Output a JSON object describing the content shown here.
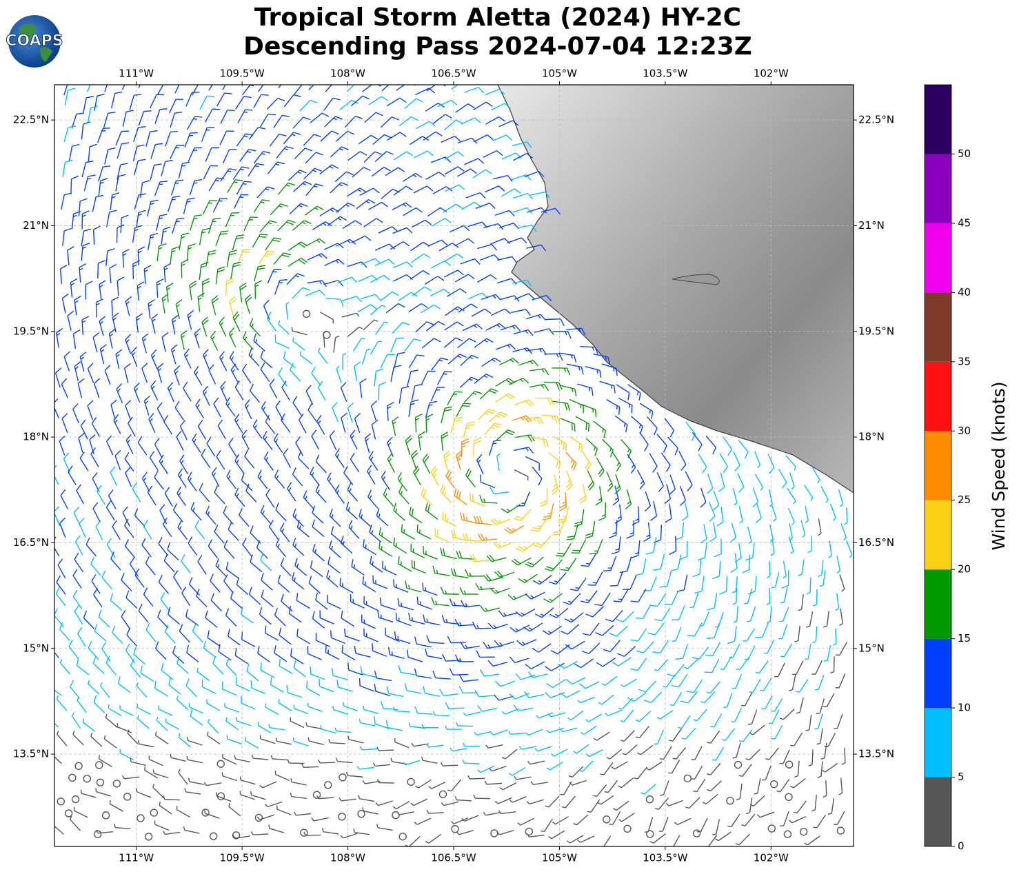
{
  "chart_data": {
    "type": "wind-barb-map",
    "title": "Tropical Storm Aletta (2024) HY-2C",
    "subtitle": "Descending Pass 2024-07-04 12:23Z",
    "logo_text": "COAPS",
    "xlim": [
      -112.16,
      -100.83
    ],
    "ylim": [
      12.19,
      23.0
    ],
    "xticks": [
      {
        "value": -111,
        "label": "111°W"
      },
      {
        "value": -109.5,
        "label": "109.5°W"
      },
      {
        "value": -108,
        "label": "108°W"
      },
      {
        "value": -106.5,
        "label": "106.5°W"
      },
      {
        "value": -105,
        "label": "105°W"
      },
      {
        "value": -103.5,
        "label": "103.5°W"
      },
      {
        "value": -102,
        "label": "102°W"
      }
    ],
    "yticks": [
      {
        "value": 22.5,
        "label": "22.5°N"
      },
      {
        "value": 21,
        "label": "21°N"
      },
      {
        "value": 19.5,
        "label": "19.5°N"
      },
      {
        "value": 18,
        "label": "18°N"
      },
      {
        "value": 16.5,
        "label": "16.5°N"
      },
      {
        "value": 15,
        "label": "15°N"
      },
      {
        "value": 13.5,
        "label": "13.5°N"
      }
    ],
    "grid": true,
    "colorbar": {
      "label": "Wind Speed (knots)",
      "bounds": [
        0,
        5,
        10,
        15,
        20,
        25,
        30,
        35,
        40,
        45,
        50,
        55
      ],
      "colors": [
        "#555555",
        "#00bfff",
        "#0040ff",
        "#009900",
        "#fcd116",
        "#ff8c00",
        "#ff1010",
        "#7f3b2a",
        "#ee00ee",
        "#8800bb",
        "#2c0060"
      ],
      "ticks": [
        0,
        5,
        10,
        15,
        20,
        25,
        30,
        35,
        40,
        45,
        50
      ]
    }
  }
}
